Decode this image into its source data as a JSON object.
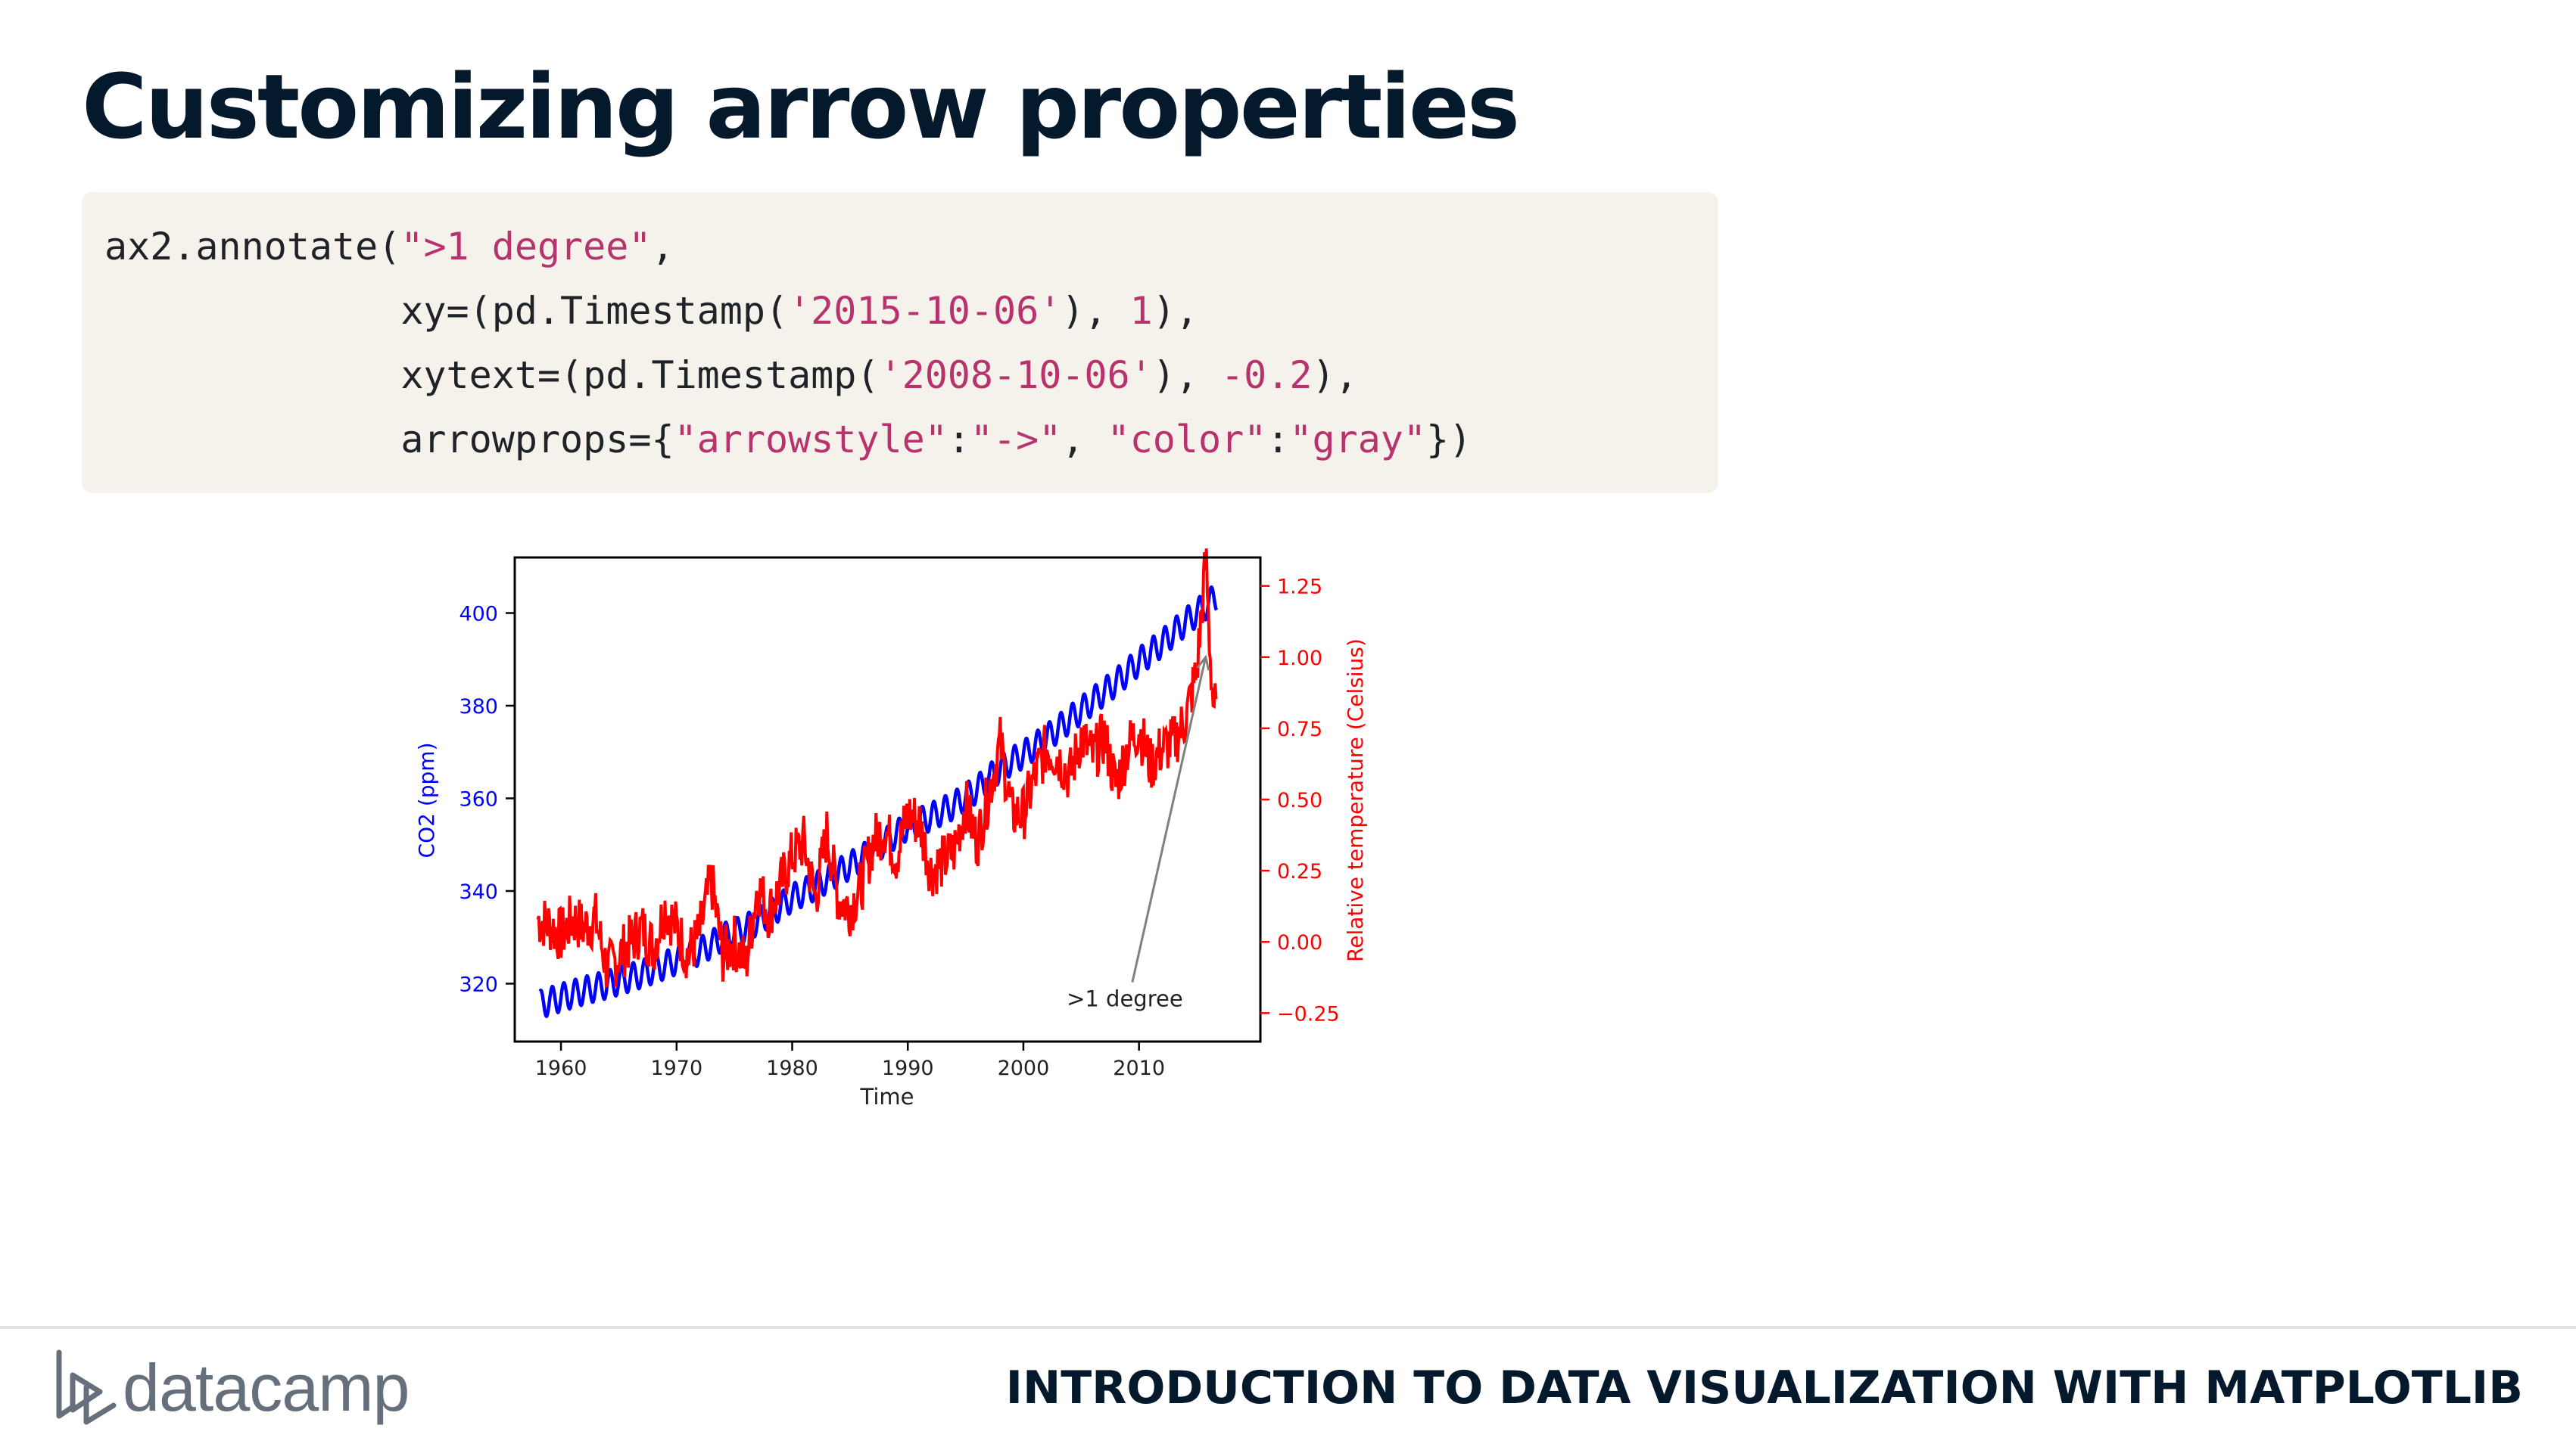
{
  "slide": {
    "title": "Customizing arrow properties",
    "footer_brand": "datacamp",
    "footer_course": "INTRODUCTION TO DATA VISUALIZATION WITH MATPLOTLIB"
  },
  "code": {
    "lines": [
      [
        {
          "t": "ax2.annotate(",
          "k": "plain"
        },
        {
          "t": "\">1 degree\"",
          "k": "str"
        },
        {
          "t": ",",
          "k": "plain"
        }
      ],
      [
        {
          "t": "             xy=(pd.Timestamp(",
          "k": "plain"
        },
        {
          "t": "'2015-10-06'",
          "k": "str"
        },
        {
          "t": "), ",
          "k": "plain"
        },
        {
          "t": "1",
          "k": "num"
        },
        {
          "t": "),",
          "k": "plain"
        }
      ],
      [
        {
          "t": "             xytext=(pd.Timestamp(",
          "k": "plain"
        },
        {
          "t": "'2008-10-06'",
          "k": "str"
        },
        {
          "t": "), ",
          "k": "plain"
        },
        {
          "t": "-0.2",
          "k": "num"
        },
        {
          "t": "),",
          "k": "plain"
        }
      ],
      [
        {
          "t": "             arrowprops={",
          "k": "plain"
        },
        {
          "t": "\"arrowstyle\"",
          "k": "str"
        },
        {
          "t": ":",
          "k": "plain"
        },
        {
          "t": "\"->\"",
          "k": "str"
        },
        {
          "t": ", ",
          "k": "plain"
        },
        {
          "t": "\"color\"",
          "k": "str"
        },
        {
          "t": ":",
          "k": "plain"
        },
        {
          "t": "\"gray\"",
          "k": "str"
        },
        {
          "t": "})",
          "k": "plain"
        }
      ]
    ]
  },
  "colors": {
    "title": "#05192d",
    "code_bg": "#f5f2ec",
    "code_text": "#1f2328",
    "code_string": "#b8326e",
    "co2": "#0000ff",
    "temp": "#ff0000",
    "annotation": "#808080"
  },
  "chart_data": {
    "type": "line",
    "xlabel": "Time",
    "xlim": [
      1956,
      2020.5
    ],
    "x_ticks": [
      1960,
      1970,
      1980,
      1990,
      2000,
      2010
    ],
    "axes": {
      "left": {
        "label": "CO2 (ppm)",
        "color": "#0000ff",
        "ylim": [
          307.5,
          412
        ],
        "ticks": [
          320,
          340,
          360,
          380,
          400
        ]
      },
      "right": {
        "label": "Relative temperature (Celsius)",
        "color": "#ff0000",
        "ylim": [
          -0.35,
          1.35
        ],
        "ticks": [
          -0.25,
          0.0,
          0.25,
          0.5,
          0.75,
          1.0,
          1.25
        ],
        "tick_labels": [
          "−0.25",
          "0.00",
          "0.25",
          "0.50",
          "0.75",
          "1.00",
          "1.25"
        ]
      }
    },
    "series": [
      {
        "name": "co2",
        "axis": "left",
        "color": "#0000ff",
        "x": [
          1958.2,
          1960,
          1962,
          1964,
          1966,
          1968,
          1970,
          1972,
          1974,
          1976,
          1978,
          1980,
          1982,
          1984,
          1986,
          1988,
          1990,
          1992,
          1994,
          1996,
          1998,
          2000,
          2002,
          2004,
          2006,
          2008,
          2010,
          2012,
          2014,
          2016.7
        ],
        "y": [
          315.5,
          317.0,
          318.5,
          319.8,
          321.3,
          323.0,
          325.0,
          327.0,
          330.0,
          332.0,
          335.0,
          338.5,
          341.0,
          344.0,
          347.0,
          350.5,
          354.0,
          356.0,
          358.5,
          362.0,
          366.5,
          369.5,
          373.0,
          377.0,
          381.0,
          385.0,
          389.5,
          393.5,
          398.0,
          403.5
        ],
        "seasonal_amplitude": 3.0
      },
      {
        "name": "temperature",
        "axis": "right",
        "color": "#ff0000",
        "x": [
          1958,
          1959,
          1960,
          1961,
          1962,
          1963,
          1964,
          1965,
          1966,
          1967,
          1968,
          1969,
          1970,
          1971,
          1972,
          1973,
          1974,
          1975,
          1976,
          1977,
          1978,
          1979,
          1980,
          1981,
          1982,
          1983,
          1984,
          1985,
          1986,
          1987,
          1988,
          1989,
          1990,
          1991,
          1992,
          1993,
          1994,
          1995,
          1996,
          1997,
          1998,
          1999,
          2000,
          2001,
          2002,
          2003,
          2004,
          2005,
          2006,
          2007,
          2008,
          2009,
          2010,
          2011,
          2012,
          2013,
          2014,
          2015,
          2015.5,
          2015.8,
          2016.1,
          2016.4,
          2016.7
        ],
        "y": [
          0.08,
          0.06,
          0.02,
          0.08,
          0.05,
          0.08,
          -0.1,
          -0.05,
          0.0,
          0.05,
          -0.02,
          0.12,
          0.05,
          -0.05,
          0.03,
          0.22,
          -0.05,
          0.0,
          -0.08,
          0.2,
          0.1,
          0.2,
          0.3,
          0.35,
          0.15,
          0.38,
          0.15,
          0.12,
          0.2,
          0.35,
          0.4,
          0.3,
          0.45,
          0.42,
          0.25,
          0.28,
          0.32,
          0.48,
          0.35,
          0.52,
          0.7,
          0.45,
          0.45,
          0.58,
          0.68,
          0.65,
          0.58,
          0.72,
          0.65,
          0.72,
          0.55,
          0.68,
          0.75,
          0.62,
          0.68,
          0.7,
          0.78,
          0.95,
          1.2,
          1.35,
          1.05,
          0.85,
          0.8
        ],
        "noise_amplitude": 0.1
      }
    ],
    "annotation": {
      "text": ">1 degree",
      "xy": [
        2015.77,
        1.0
      ],
      "xytext": [
        2008.77,
        -0.2
      ],
      "arrowstyle": "->",
      "color": "#808080"
    }
  }
}
